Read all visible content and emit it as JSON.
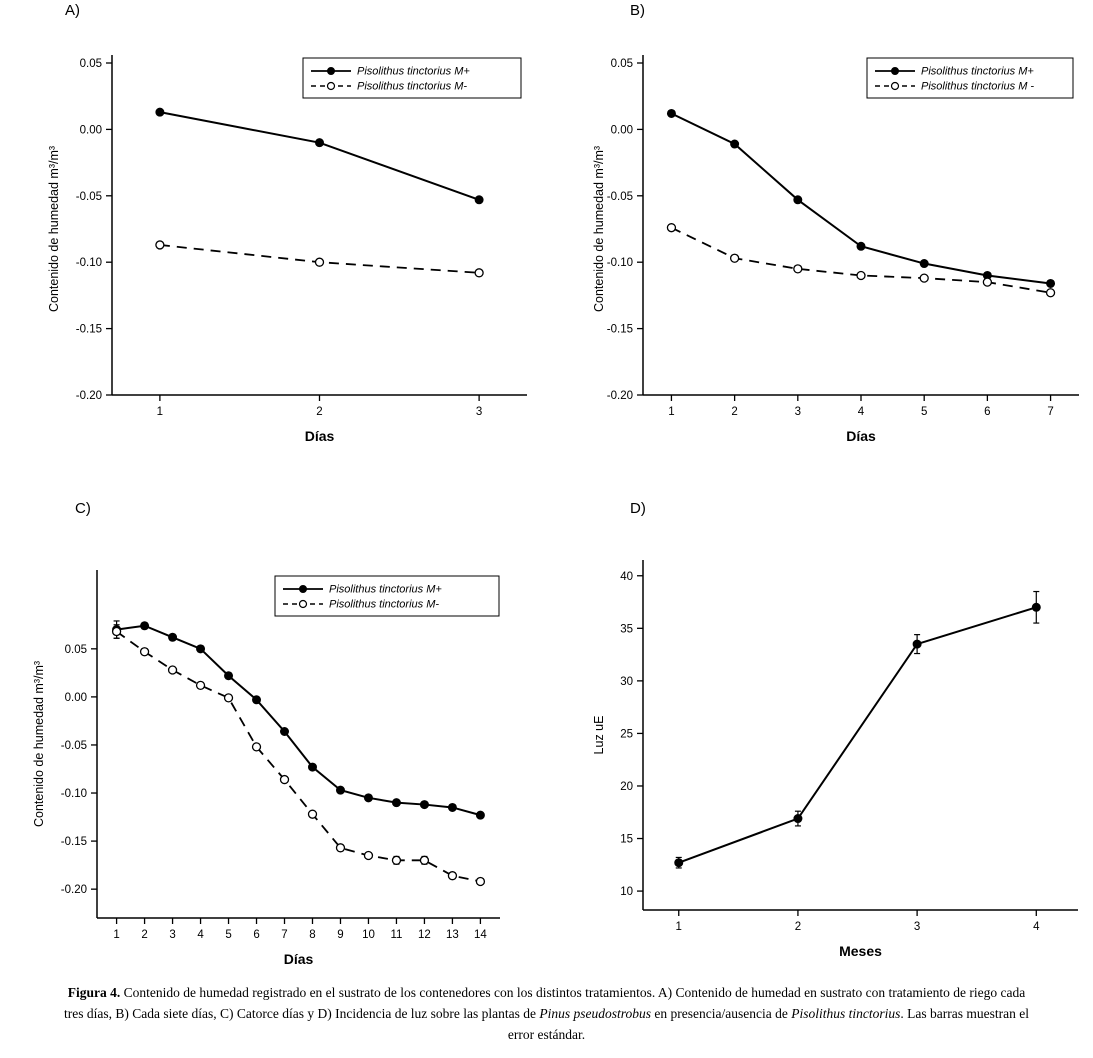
{
  "figure": {
    "caption": {
      "label": "Figura 4.",
      "part1": " Contenido de humedad registrado en el sustrato de los contenedores con los distintos tratamientos. A) Contenido de humedad en sustrato con tratamiento de riego cada tres días, B) Cada siete días, C) Catorce días y D) Incidencia de luz sobre las plantas de ",
      "italic1": "Pinus pseudostrobus",
      "part2": " en presencia/ausencia de ",
      "italic2": "Pisolithus tinctorius",
      "part3": ". Las barras muestran el error estándar."
    },
    "colors": {
      "ink": "#000000",
      "background": "#ffffff"
    }
  },
  "chart_data": [
    {
      "id": "A",
      "panel_label": "A)",
      "type": "line",
      "xlabel": "Días",
      "ylabel": "Contenido de humedad m³/m³",
      "x": [
        1,
        2,
        3
      ],
      "xlim": [
        0.7,
        3.3
      ],
      "ylim": [
        -0.2,
        0.05
      ],
      "yticks": [
        0.05,
        0.0,
        -0.05,
        -0.1,
        -0.15,
        -0.2
      ],
      "ydecimals": 2,
      "grid": false,
      "legend": true,
      "legend_position": "top-right",
      "series": [
        {
          "name": "Pisolithus tinctorius M+",
          "line": "solid",
          "marker": "filled-circle",
          "values": [
            0.013,
            -0.01,
            -0.053
          ]
        },
        {
          "name": "Pisolithus tinctorius M-",
          "line": "dashed",
          "marker": "open-circle",
          "values": [
            -0.087,
            -0.1,
            -0.108
          ]
        }
      ]
    },
    {
      "id": "B",
      "panel_label": "B)",
      "type": "line",
      "xlabel": "Días",
      "ylabel": "Contenido de humedad m³/m³",
      "x": [
        1,
        2,
        3,
        4,
        5,
        6,
        7
      ],
      "xlim": [
        0.55,
        7.45
      ],
      "ylim": [
        -0.2,
        0.05
      ],
      "yticks": [
        0.05,
        0.0,
        -0.05,
        -0.1,
        -0.15,
        -0.2
      ],
      "ydecimals": 2,
      "grid": false,
      "legend": true,
      "legend_position": "top-right",
      "series": [
        {
          "name": "Pisolithus tinctorius M+",
          "line": "solid",
          "marker": "filled-circle",
          "values": [
            0.012,
            -0.011,
            -0.053,
            -0.088,
            -0.101,
            -0.11,
            -0.116
          ]
        },
        {
          "name": "Pisolithus tinctorius M -",
          "line": "dashed",
          "marker": "open-circle",
          "values": [
            -0.074,
            -0.097,
            -0.105,
            -0.11,
            -0.112,
            -0.115,
            -0.123
          ]
        }
      ]
    },
    {
      "id": "C",
      "panel_label": "C)",
      "type": "line",
      "xlabel": "Días",
      "ylabel": "Contenido de humedad m³/m³",
      "x": [
        1,
        2,
        3,
        4,
        5,
        6,
        7,
        8,
        9,
        10,
        11,
        12,
        13,
        14
      ],
      "xlim": [
        0.3,
        14.7
      ],
      "ylim": [
        -0.23,
        0.132
      ],
      "yticks": [
        0.05,
        0.0,
        -0.05,
        -0.1,
        -0.15,
        -0.2
      ],
      "ydecimals": 2,
      "grid": false,
      "legend": true,
      "legend_position": "top-right",
      "series": [
        {
          "name": "Pisolithus tinctorius M+",
          "line": "solid",
          "marker": "filled-circle",
          "values": [
            0.07,
            0.074,
            0.062,
            0.05,
            0.022,
            -0.003,
            -0.036,
            -0.073,
            -0.097,
            -0.105,
            -0.11,
            -0.112,
            -0.115,
            -0.123
          ],
          "errors": [
            0.009,
            0.003,
            0.003,
            0.003,
            0.003,
            0.002,
            0.002,
            0.002,
            0.002,
            0.002,
            0.002,
            0.002,
            0.002,
            0.002
          ]
        },
        {
          "name": "Pisolithus tinctorius M-",
          "line": "dashed",
          "marker": "open-circle",
          "values": [
            0.068,
            0.047,
            0.028,
            0.012,
            -0.001,
            -0.052,
            -0.086,
            -0.122,
            -0.157,
            -0.165,
            -0.17,
            -0.17,
            -0.186,
            -0.192
          ],
          "errors": [
            0.007,
            0.003,
            0.003,
            0.003,
            0.003,
            0.002,
            0.002,
            0.002,
            0.003,
            0.003,
            0.004,
            0.004,
            0.003,
            0.003
          ]
        }
      ]
    },
    {
      "id": "D",
      "panel_label": "D)",
      "type": "line",
      "xlabel": "Meses",
      "ylabel": "Luz uE",
      "x": [
        1,
        2,
        3,
        4
      ],
      "xlim": [
        0.7,
        4.35
      ],
      "ylim": [
        8.2,
        41.5
      ],
      "yticks": [
        40,
        35,
        30,
        25,
        20,
        15,
        10
      ],
      "ydecimals": 0,
      "grid": false,
      "legend": false,
      "series": [
        {
          "name": "",
          "line": "solid",
          "marker": "filled-circle",
          "values": [
            12.7,
            16.9,
            33.5,
            37.0
          ],
          "errors": [
            0.5,
            0.7,
            0.9,
            1.5
          ]
        }
      ]
    }
  ]
}
